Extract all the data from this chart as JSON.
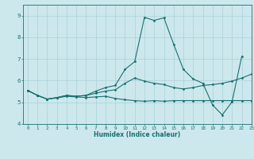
{
  "xlabel": "Humidex (Indice chaleur)",
  "xlim": [
    -0.5,
    23
  ],
  "ylim": [
    4,
    9.5
  ],
  "yticks": [
    4,
    5,
    6,
    7,
    8,
    9
  ],
  "xticks": [
    0,
    1,
    2,
    3,
    4,
    5,
    6,
    7,
    8,
    9,
    10,
    11,
    12,
    13,
    14,
    15,
    16,
    17,
    18,
    19,
    20,
    21,
    22,
    23
  ],
  "bg_color": "#cce8ec",
  "grid_color": "#aad0d8",
  "line_color": "#1a7070",
  "line1_y": [
    5.55,
    5.32,
    5.15,
    5.2,
    5.28,
    5.25,
    5.22,
    5.25,
    5.28,
    5.18,
    5.12,
    5.08,
    5.05,
    5.08,
    5.05,
    5.08,
    5.08,
    5.08,
    5.08,
    5.08,
    5.08,
    5.08,
    5.08,
    5.08
  ],
  "line2_y": [
    5.55,
    5.32,
    5.15,
    5.22,
    5.32,
    5.28,
    5.32,
    5.42,
    5.52,
    5.58,
    5.88,
    6.12,
    5.98,
    5.88,
    5.82,
    5.68,
    5.62,
    5.68,
    5.78,
    5.82,
    5.88,
    5.98,
    6.12,
    6.3
  ],
  "line3_y": [
    5.55,
    5.32,
    5.15,
    5.22,
    5.32,
    5.28,
    5.32,
    5.52,
    5.68,
    5.78,
    6.52,
    6.88,
    8.92,
    8.78,
    8.9,
    7.68,
    6.52,
    6.08,
    5.88,
    4.88,
    4.42,
    5.02,
    7.12,
    null
  ],
  "figsize": [
    3.2,
    2.0
  ],
  "dpi": 100
}
